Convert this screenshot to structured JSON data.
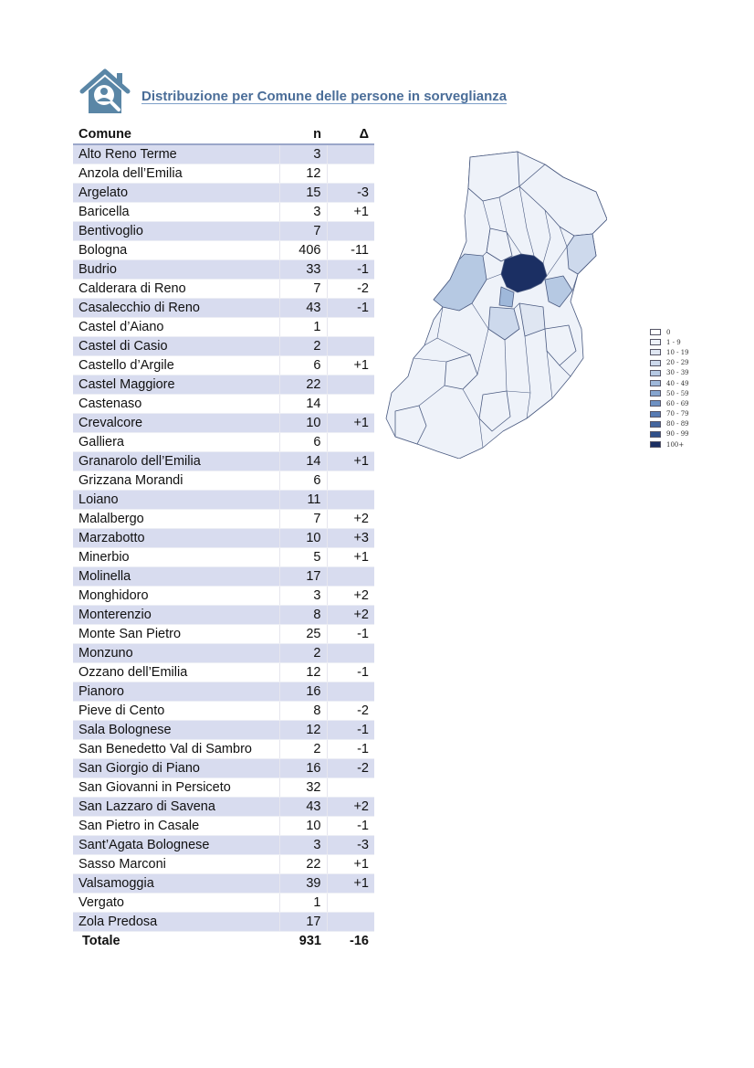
{
  "header": {
    "title": "Distribuzione per Comune delle persone in sorveglianza",
    "icon": "house-person-search-icon"
  },
  "table": {
    "columns": [
      "Comune",
      "n",
      "Δ"
    ],
    "rows": [
      [
        "Alto Reno Terme",
        "3",
        ""
      ],
      [
        "Anzola dell’Emilia",
        "12",
        ""
      ],
      [
        "Argelato",
        "15",
        "-3"
      ],
      [
        "Baricella",
        "3",
        "+1"
      ],
      [
        "Bentivoglio",
        "7",
        ""
      ],
      [
        "Bologna",
        "406",
        "-11"
      ],
      [
        "Budrio",
        "33",
        "-1"
      ],
      [
        "Calderara di Reno",
        "7",
        "-2"
      ],
      [
        "Casalecchio di Reno",
        "43",
        "-1"
      ],
      [
        "Castel d’Aiano",
        "1",
        ""
      ],
      [
        "Castel di Casio",
        "2",
        ""
      ],
      [
        "Castello d’Argile",
        "6",
        "+1"
      ],
      [
        "Castel Maggiore",
        "22",
        ""
      ],
      [
        "Castenaso",
        "14",
        ""
      ],
      [
        "Crevalcore",
        "10",
        "+1"
      ],
      [
        "Galliera",
        "6",
        ""
      ],
      [
        "Granarolo dell’Emilia",
        "14",
        "+1"
      ],
      [
        "Grizzana Morandi",
        "6",
        ""
      ],
      [
        "Loiano",
        "11",
        ""
      ],
      [
        "Malalbergo",
        "7",
        "+2"
      ],
      [
        "Marzabotto",
        "10",
        "+3"
      ],
      [
        "Minerbio",
        "5",
        "+1"
      ],
      [
        "Molinella",
        "17",
        ""
      ],
      [
        "Monghidoro",
        "3",
        "+2"
      ],
      [
        "Monterenzio",
        "8",
        "+2"
      ],
      [
        "Monte San Pietro",
        "25",
        "-1"
      ],
      [
        "Monzuno",
        "2",
        ""
      ],
      [
        "Ozzano dell’Emilia",
        "12",
        "-1"
      ],
      [
        "Pianoro",
        "16",
        ""
      ],
      [
        "Pieve di Cento",
        "8",
        "-2"
      ],
      [
        "Sala Bolognese",
        "12",
        "-1"
      ],
      [
        "San Benedetto Val di Sambro",
        "2",
        "-1"
      ],
      [
        "San Giorgio di Piano",
        "16",
        "-2"
      ],
      [
        "San Giovanni in Persiceto",
        "32",
        ""
      ],
      [
        "San Lazzaro di Savena",
        "43",
        "+2"
      ],
      [
        "San Pietro in Casale",
        "10",
        "-1"
      ],
      [
        "Sant’Agata Bolognese",
        "3",
        "-3"
      ],
      [
        "Sasso Marconi",
        "22",
        "+1"
      ],
      [
        "Valsamoggia",
        "39",
        "+1"
      ],
      [
        "Vergato",
        "1",
        ""
      ],
      [
        "Zola Predosa",
        "17",
        ""
      ]
    ],
    "total": [
      "Totale",
      "931",
      "-16"
    ]
  },
  "map": {
    "legend": [
      {
        "label": "0",
        "color": "#ffffff"
      },
      {
        "label": "1 - 9",
        "color": "#eef2f9"
      },
      {
        "label": "10 - 19",
        "color": "#dfe6f2"
      },
      {
        "label": "20 - 29",
        "color": "#cdd9ec"
      },
      {
        "label": "30 - 39",
        "color": "#b6c9e3"
      },
      {
        "label": "40 - 49",
        "color": "#9fb8da"
      },
      {
        "label": "50 - 59",
        "color": "#86a5cf"
      },
      {
        "label": "60 - 69",
        "color": "#6e91c3"
      },
      {
        "label": "70 - 79",
        "color": "#577bb3"
      },
      {
        "label": "80 - 89",
        "color": "#44669f"
      },
      {
        "label": "90 - 99",
        "color": "#30508a"
      },
      {
        "label": "100+",
        "color": "#1b2f63"
      }
    ]
  }
}
